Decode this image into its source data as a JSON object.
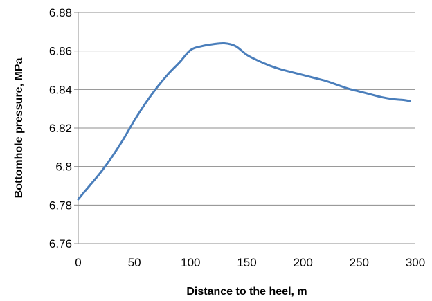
{
  "chart_data": {
    "type": "line",
    "title": "",
    "xlabel": "Distance to the heel, m",
    "ylabel": "Bottomhole pressure, MPa",
    "xlim": [
      0,
      300
    ],
    "ylim": [
      6.76,
      6.88
    ],
    "x_ticks": [
      "0",
      "50",
      "100",
      "150",
      "200",
      "250",
      "300"
    ],
    "y_ticks": [
      "6.76",
      "6.78",
      "6.8",
      "6.82",
      "6.84",
      "6.86",
      "6.88"
    ],
    "grid": "horizontal",
    "legend": "none",
    "series": [
      {
        "color": "#4a7ebb",
        "x": [
          0,
          10,
          20,
          30,
          40,
          50,
          60,
          70,
          80,
          90,
          100,
          110,
          120,
          130,
          140,
          150,
          160,
          170,
          180,
          190,
          200,
          210,
          220,
          230,
          240,
          250,
          260,
          270,
          280,
          290,
          295
        ],
        "y": [
          6.783,
          6.79,
          6.797,
          6.805,
          6.814,
          6.824,
          6.833,
          6.841,
          6.848,
          6.854,
          6.8605,
          6.8625,
          6.8635,
          6.864,
          6.8625,
          6.858,
          6.855,
          6.8525,
          6.8505,
          6.849,
          6.8475,
          6.846,
          6.8445,
          6.8425,
          6.8405,
          6.839,
          6.8375,
          6.836,
          6.835,
          6.8345,
          6.834
        ]
      }
    ]
  }
}
